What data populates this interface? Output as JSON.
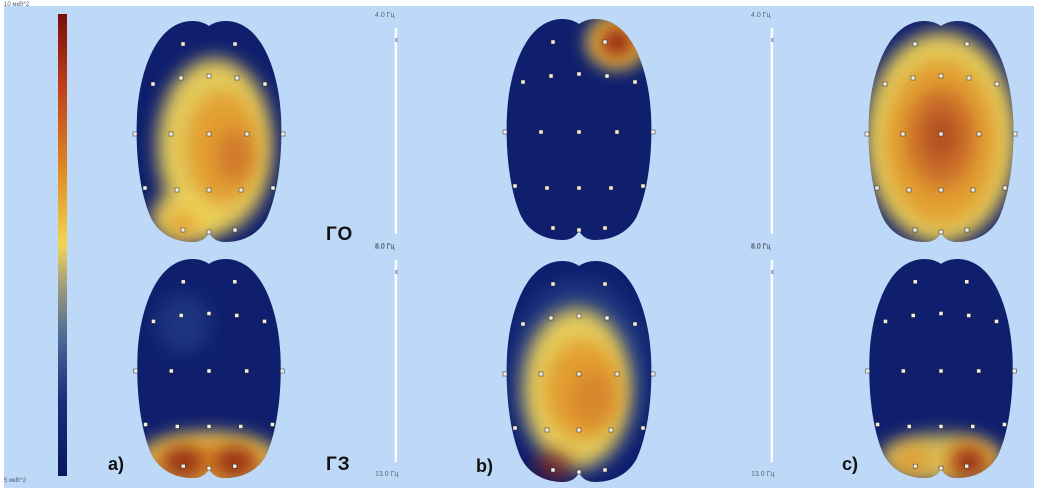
{
  "colorbar": {
    "top_label": "10 мкВ^2",
    "bottom_label": "5 мкВ^2"
  },
  "scales": {
    "top": {
      "from": "4.0 Гц",
      "to": "8.0 Гц"
    },
    "bottom": {
      "from": "8.0 Гц",
      "to": "13.0 Гц"
    }
  },
  "labels": {
    "panel_a": "a)",
    "panel_b": "b)",
    "panel_c": "c)",
    "state_top": "ГО",
    "state_bottom": "ГЗ"
  },
  "colors": {
    "background": "#bed9f7",
    "low": "#0f1f6e",
    "mid_blue": "#3a5f9e",
    "yellow": "#f0d45a",
    "orange": "#e2962c",
    "high": "#8a1a0c"
  }
}
